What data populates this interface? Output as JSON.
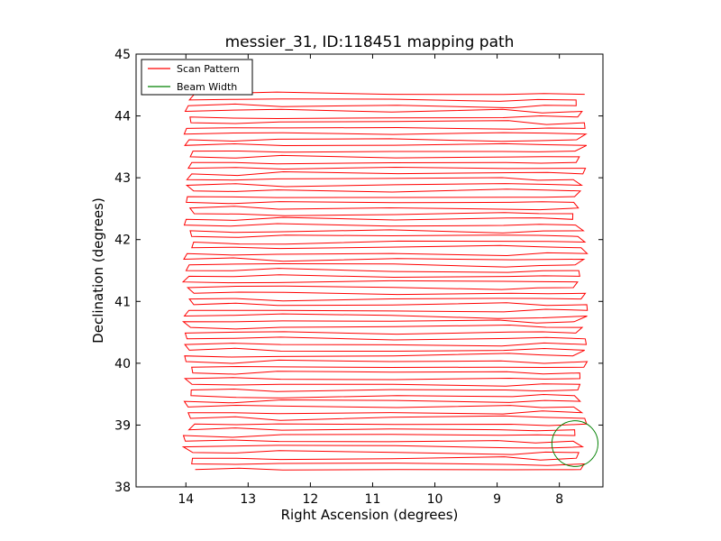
{
  "chart_data": {
    "type": "line",
    "title": "messier_31, ID:118451 mapping path",
    "xlabel": "Right Ascension (degrees)",
    "ylabel": "Declination (degrees)",
    "xlim": [
      14.8,
      7.3
    ],
    "ylim": [
      38,
      45
    ],
    "x_ticks": [
      14,
      13,
      12,
      11,
      10,
      9,
      8
    ],
    "y_ticks": [
      38,
      39,
      40,
      41,
      42,
      43,
      44,
      45
    ],
    "x_tick_labels": [
      "14",
      "13",
      "12",
      "11",
      "10",
      "9",
      "8"
    ],
    "y_tick_labels": [
      "38",
      "39",
      "40",
      "41",
      "42",
      "43",
      "44",
      "45"
    ],
    "grid": false,
    "legend_position": "top-left",
    "series": [
      {
        "name": "Scan Pattern",
        "color": "#ff0000",
        "kind": "raster-scan",
        "dec_start": 38.28,
        "dec_end": 44.35,
        "num_legs": 67,
        "ra_min": 13.95,
        "ra_max": 7.72,
        "joint_ra": [
          12.47,
          8.87
        ]
      },
      {
        "name": "Beam Width",
        "color": "#008000",
        "kind": "circle",
        "center_ra": 7.75,
        "center_dec": 38.7,
        "radius_deg": 0.37
      }
    ]
  }
}
